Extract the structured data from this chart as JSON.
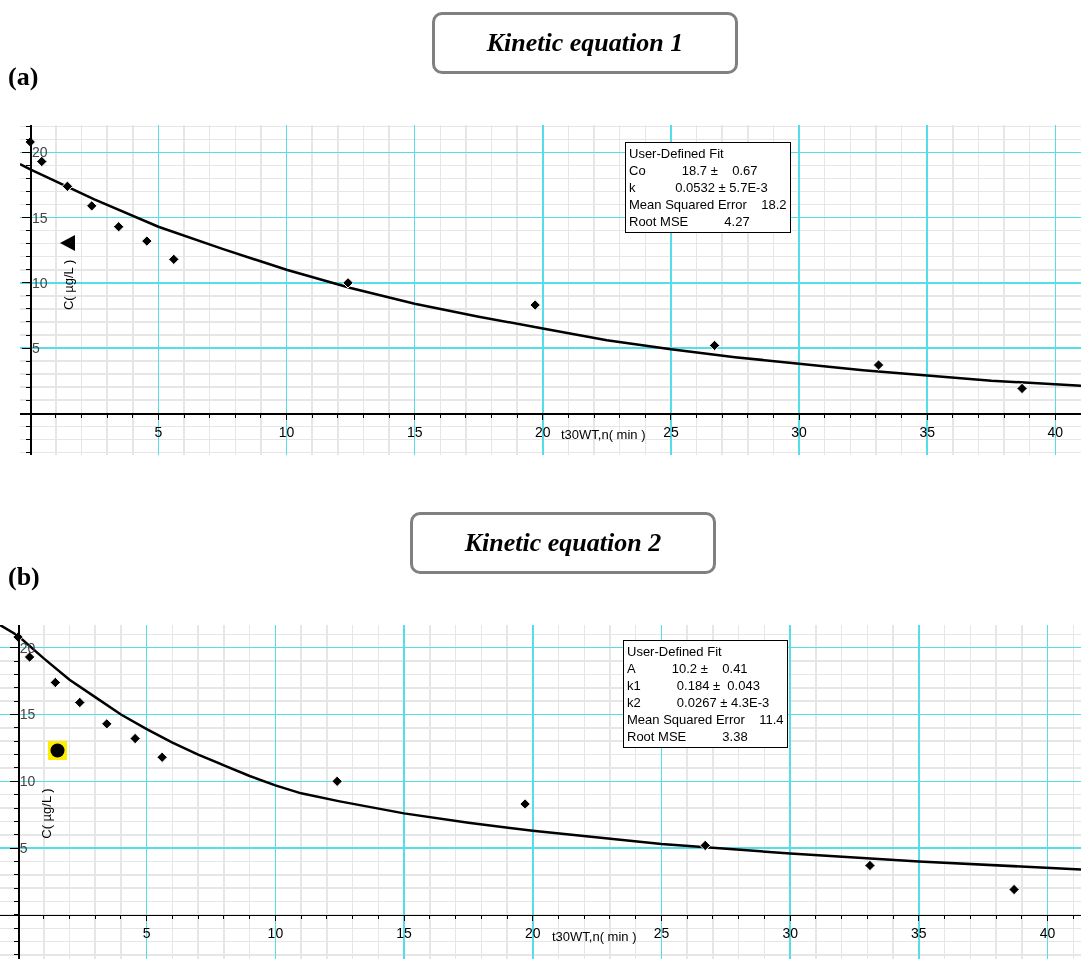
{
  "chart_data": [
    {
      "type": "scatter",
      "title": "Kinetic equation 1",
      "xlabel": "t30WT,n( min )",
      "ylabel": "C( µg/L )",
      "annotations": [
        "(a)",
        "User-Defined Fit",
        "Co          18.7 ±    0.67",
        "k           0.0532 ± 5.7E-3",
        "Mean Squared Error    18.2",
        "Root MSE          4.27"
      ],
      "xlim": [
        -0.4,
        41.0
      ],
      "ylim": [
        -3.2,
        22.1
      ],
      "xticks": [
        5,
        10,
        15,
        20,
        25,
        30,
        35,
        40
      ],
      "yticks": [
        5,
        10,
        15,
        20
      ],
      "grid": true,
      "series": [
        {
          "marker": "diamond",
          "color": "#000000",
          "x": [
            0,
            0.45,
            1.45,
            2.4,
            3.45,
            4.55,
            5.6,
            12.4,
            19.7,
            26.7,
            33.1,
            38.7
          ],
          "values": [
            20.8,
            19.3,
            17.4,
            15.9,
            14.3,
            13.2,
            11.8,
            10.0,
            8.3,
            5.2,
            3.7,
            1.9
          ]
        },
        {
          "type": "line",
          "marker": "none",
          "color": "#000000",
          "x": [
            -0.4,
            0,
            2.5,
            5,
            7.5,
            10,
            12.5,
            15,
            17.5,
            20,
            22.5,
            25,
            27.5,
            30,
            32.5,
            35,
            37.5,
            41
          ],
          "values": [
            19.1,
            18.7,
            16.4,
            14.3,
            12.6,
            11.0,
            9.6,
            8.4,
            7.4,
            6.5,
            5.6,
            4.9,
            4.3,
            3.8,
            3.3,
            2.9,
            2.5,
            2.1
          ]
        }
      ]
    },
    {
      "type": "scatter",
      "title": "Kinetic equation 2",
      "xlabel": "t30WT,n( min )",
      "ylabel": "C( µg/L )",
      "annotations": [
        "(b)",
        "User-Defined Fit",
        "A          10.2 ±    0.41",
        "k1          0.184 ±  0.043",
        "k2          0.0267 ± 4.3E-3",
        "Mean Squared Error    11.4",
        "Root MSE          3.38"
      ],
      "xlim": [
        -0.7,
        41.3
      ],
      "ylim": [
        -3.3,
        21.7
      ],
      "xticks": [
        5,
        10,
        15,
        20,
        25,
        30,
        35,
        40
      ],
      "yticks": [
        5,
        10,
        15,
        20
      ],
      "grid": true,
      "series": [
        {
          "marker": "diamond",
          "color": "#000000",
          "x": [
            0,
            0.45,
            1.45,
            2.4,
            3.45,
            4.55,
            5.6,
            12.4,
            19.7,
            26.7,
            33.1,
            38.7
          ],
          "values": [
            20.8,
            19.3,
            17.4,
            15.9,
            14.3,
            13.2,
            11.8,
            10.0,
            8.3,
            5.2,
            3.7,
            1.9
          ]
        },
        {
          "type": "line",
          "marker": "none",
          "color": "#000000",
          "x": [
            -0.7,
            0,
            1,
            2,
            3,
            4,
            5,
            6,
            7,
            8,
            9,
            10,
            11,
            12.5,
            15,
            17.5,
            20,
            25,
            30,
            35,
            41.3
          ],
          "values": [
            21.7,
            20.9,
            19.2,
            17.6,
            16.3,
            15.0,
            13.9,
            12.9,
            12.0,
            11.2,
            10.4,
            9.7,
            9.1,
            8.5,
            7.6,
            6.9,
            6.3,
            5.3,
            4.6,
            4.0,
            3.4
          ]
        }
      ]
    }
  ]
}
